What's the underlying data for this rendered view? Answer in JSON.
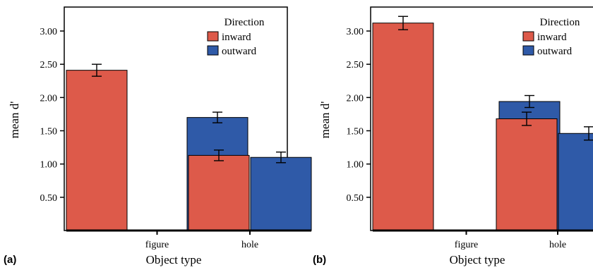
{
  "chart_data": [
    {
      "type": "bar",
      "panel_label": "(a)",
      "categories": [
        "figure",
        "hole"
      ],
      "series": [
        {
          "name": "inward",
          "color": "#dd5a4a",
          "values": [
            2.41,
            1.13
          ],
          "errors": [
            0.09,
            0.08
          ]
        },
        {
          "name": "outward",
          "color": "#2f5aa8",
          "values": [
            1.7,
            1.1
          ],
          "errors": [
            0.08,
            0.08
          ]
        }
      ],
      "xlabel": "Object type",
      "ylabel": "mean d'",
      "yticks": [
        "0.50",
        "1.00",
        "1.50",
        "2.00",
        "2.50",
        "3.00"
      ],
      "ylim": [
        0.0,
        3.4
      ],
      "legend": {
        "title": "Direction",
        "position": "top-right"
      },
      "grid": false
    },
    {
      "type": "bar",
      "panel_label": "(b)",
      "categories": [
        "figure",
        "hole"
      ],
      "series": [
        {
          "name": "inward",
          "color": "#dd5a4a",
          "values": [
            3.12,
            1.68
          ],
          "errors": [
            0.1,
            0.1
          ]
        },
        {
          "name": "outward",
          "color": "#2f5aa8",
          "values": [
            1.94,
            1.46
          ],
          "errors": [
            0.09,
            0.1
          ]
        }
      ],
      "xlabel": "Object type",
      "ylabel": "mean d'",
      "yticks": [
        "0.50",
        "1.00",
        "1.50",
        "2.00",
        "2.50",
        "3.00"
      ],
      "ylim": [
        0.0,
        3.4
      ],
      "legend": {
        "title": "Direction",
        "position": "top-right"
      },
      "grid": false
    }
  ]
}
